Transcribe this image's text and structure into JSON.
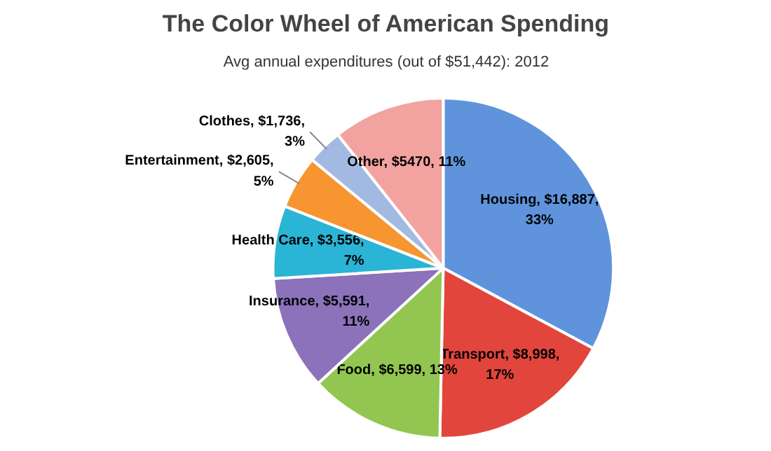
{
  "chart_data": {
    "type": "pie",
    "title": "The Color Wheel of American Spending",
    "subtitle": "Avg annual expenditures (out of $51,442): 2012",
    "categories": [
      "Housing",
      "Transport",
      "Food",
      "Insurance",
      "Health Care",
      "Entertainment",
      "Clothes",
      "Other"
    ],
    "values": [
      16887,
      8998,
      6599,
      5591,
      3556,
      2605,
      1736,
      5470
    ],
    "value_labels": [
      "$16,887, 33%",
      "$8,998, 17%",
      "$6,599, 13%",
      "$5,591, 11%",
      "$3,556, 7%",
      "$2,605, 5%",
      "$1,736, 3%",
      "$5470, 11%"
    ],
    "colors": [
      "#5f94dc",
      "#e2453c",
      "#92c650",
      "#8b72bb",
      "#2ab4d6",
      "#f79530",
      "#a2bae2",
      "#f2a3a0"
    ]
  }
}
